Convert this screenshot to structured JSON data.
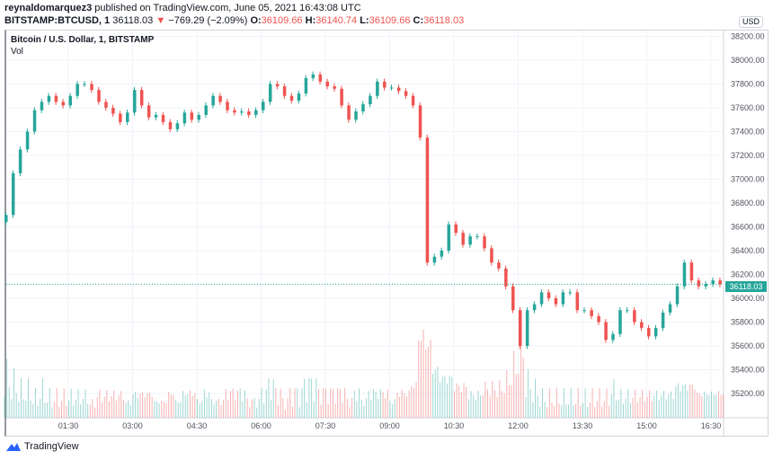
{
  "header": {
    "author": "reynaldomarquez3",
    "published_text": "published on TradingView.com, June 05, 2021 16:43:08 UTC",
    "symbol": "BITSTAMP:BTCUSD, 1",
    "last": "36118.03",
    "change": "−769.29 (−2.09%)",
    "o_label": "O:",
    "o": "36109.66",
    "h_label": "H:",
    "h": "36140.74",
    "l_label": "L:",
    "l": "36109.66",
    "c_label": "C:",
    "c": "36118.03"
  },
  "legend": {
    "title": "Bitcoin / U.S. Dollar, 1, BITSTAMP",
    "vol": "Vol"
  },
  "price_axis": {
    "currency": "USD",
    "last_price_label": "36118.03"
  },
  "footer": {
    "brand": "TradingView"
  },
  "colors": {
    "up": "#26a69a",
    "down": "#ef5350",
    "grid": "#f0f3fa"
  },
  "chart_data": {
    "type": "candlestick",
    "title": "Bitcoin / U.S. Dollar, 1, BITSTAMP",
    "ylim": [
      35040,
      38260
    ],
    "yticks": [
      38200,
      38000,
      37800,
      37600,
      37400,
      37200,
      37000,
      36800,
      36600,
      36400,
      36200,
      36000,
      35800,
      35600,
      35400,
      35200
    ],
    "xtick_labels": [
      "01:30",
      "03:00",
      "04:30",
      "06:00",
      "07:30",
      "09:00",
      "10:30",
      "12:00",
      "13:30",
      "15:00",
      "16:30"
    ],
    "grid": true,
    "interval_minutes": 10,
    "start_time": "00:00",
    "close": [
      36700,
      37050,
      37250,
      37400,
      37580,
      37650,
      37700,
      37650,
      37620,
      37700,
      37800,
      37800,
      37750,
      37650,
      37600,
      37550,
      37480,
      37560,
      37750,
      37620,
      37520,
      37540,
      37480,
      37420,
      37470,
      37560,
      37500,
      37540,
      37620,
      37700,
      37650,
      37580,
      37560,
      37570,
      37540,
      37580,
      37650,
      37800,
      37780,
      37700,
      37660,
      37720,
      37850,
      37880,
      37820,
      37780,
      37760,
      37620,
      37500,
      37570,
      37630,
      37700,
      37820,
      37770,
      37770,
      37740,
      37700,
      37620,
      37350,
      36300,
      36350,
      36400,
      36620,
      36550,
      36450,
      36520,
      36520,
      36420,
      36300,
      36250,
      36100,
      35900,
      35600,
      35900,
      35950,
      36050,
      36000,
      35950,
      36050,
      36050,
      35900,
      35900,
      35850,
      35800,
      35650,
      35700,
      35900,
      35900,
      35800,
      35750,
      35680,
      35750,
      35880,
      35950,
      36100,
      36300,
      36150,
      36100,
      36120,
      36150,
      36118.03
    ],
    "volume_relative": [
      6,
      5,
      4,
      4,
      3,
      4,
      3,
      3,
      3,
      3,
      3,
      3,
      2,
      3,
      3,
      3,
      3,
      2,
      3,
      3,
      3,
      2,
      2,
      3,
      2,
      3,
      3,
      2,
      3,
      2,
      2,
      3,
      3,
      3,
      2,
      2,
      3,
      4,
      3,
      2,
      3,
      3,
      4,
      4,
      3,
      3,
      3,
      3,
      2,
      3,
      2,
      3,
      3,
      3,
      2,
      3,
      3,
      4,
      10,
      9,
      6,
      5,
      5,
      4,
      4,
      3,
      3,
      4,
      4,
      4,
      5,
      7,
      10,
      5,
      4,
      3,
      3,
      3,
      3,
      3,
      3,
      3,
      3,
      3,
      3,
      4,
      3,
      3,
      3,
      3,
      3,
      3,
      3,
      3,
      4,
      4,
      4,
      3,
      3,
      3,
      3
    ]
  }
}
